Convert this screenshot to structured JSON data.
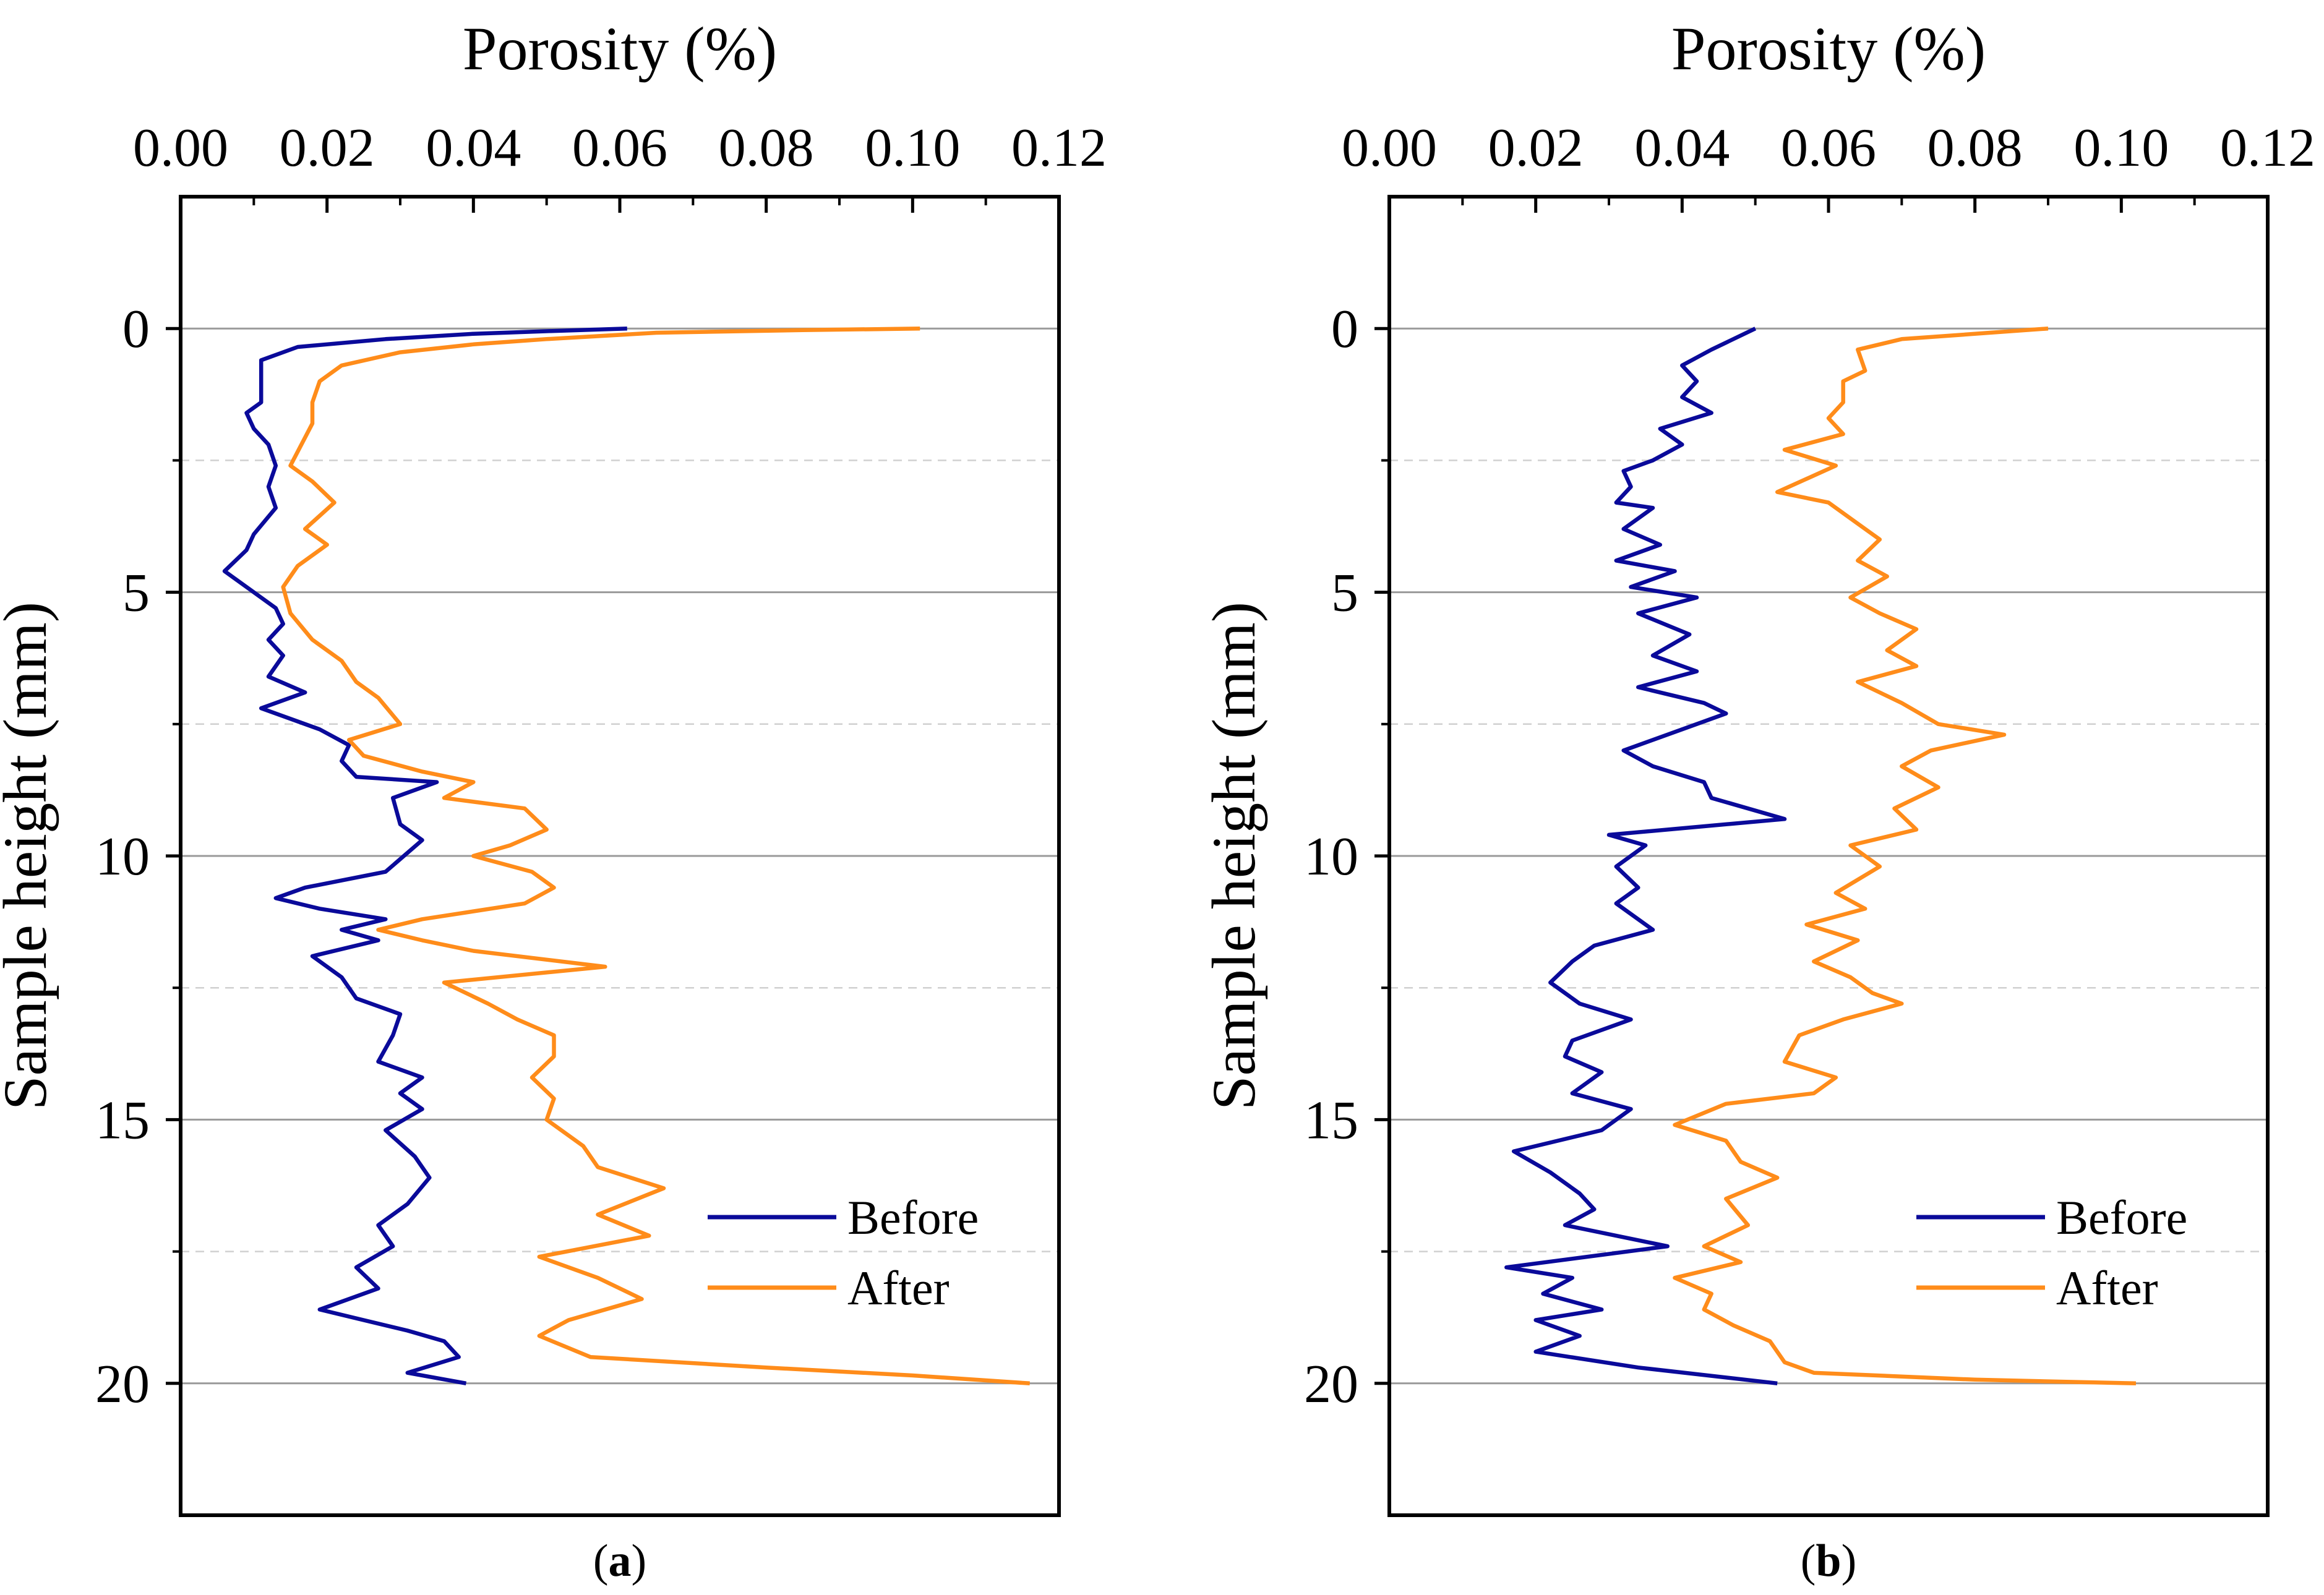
{
  "chart_data": [
    {
      "type": "line",
      "panel_label": "a",
      "xlabel": "Porosity (%)",
      "ylabel": "Sample height (mm)",
      "xlim": [
        0,
        0.12
      ],
      "ylim": [
        -2.5,
        22.5
      ],
      "x_ticks": [
        "0.00",
        "0.02",
        "0.04",
        "0.06",
        "0.08",
        "0.10",
        "0.12"
      ],
      "y_ticks": [
        "0",
        "5",
        "10",
        "15",
        "20"
      ],
      "legend_position": "bottom-right",
      "series": [
        {
          "name": "Before",
          "color": "#0a0a9a",
          "points": [
            [
              0.061,
              0
            ],
            [
              0.05,
              0.05
            ],
            [
              0.04,
              0.1
            ],
            [
              0.028,
              0.2
            ],
            [
              0.016,
              0.35
            ],
            [
              0.011,
              0.6
            ],
            [
              0.011,
              1.0
            ],
            [
              0.011,
              1.4
            ],
            [
              0.009,
              1.6
            ],
            [
              0.01,
              1.9
            ],
            [
              0.012,
              2.2
            ],
            [
              0.013,
              2.6
            ],
            [
              0.012,
              3.0
            ],
            [
              0.013,
              3.4
            ],
            [
              0.01,
              3.9
            ],
            [
              0.009,
              4.2
            ],
            [
              0.006,
              4.6
            ],
            [
              0.009,
              4.9
            ],
            [
              0.013,
              5.3
            ],
            [
              0.014,
              5.6
            ],
            [
              0.012,
              5.9
            ],
            [
              0.014,
              6.2
            ],
            [
              0.012,
              6.6
            ],
            [
              0.017,
              6.9
            ],
            [
              0.011,
              7.2
            ],
            [
              0.019,
              7.6
            ],
            [
              0.023,
              7.9
            ],
            [
              0.022,
              8.2
            ],
            [
              0.024,
              8.5
            ],
            [
              0.035,
              8.6
            ],
            [
              0.029,
              8.9
            ],
            [
              0.03,
              9.4
            ],
            [
              0.033,
              9.7
            ],
            [
              0.028,
              10.3
            ],
            [
              0.017,
              10.6
            ],
            [
              0.013,
              10.8
            ],
            [
              0.019,
              11.0
            ],
            [
              0.028,
              11.2
            ],
            [
              0.022,
              11.4
            ],
            [
              0.027,
              11.6
            ],
            [
              0.018,
              11.9
            ],
            [
              0.022,
              12.3
            ],
            [
              0.024,
              12.7
            ],
            [
              0.03,
              13.0
            ],
            [
              0.029,
              13.4
            ],
            [
              0.027,
              13.9
            ],
            [
              0.033,
              14.2
            ],
            [
              0.03,
              14.5
            ],
            [
              0.033,
              14.8
            ],
            [
              0.028,
              15.2
            ],
            [
              0.032,
              15.7
            ],
            [
              0.034,
              16.1
            ],
            [
              0.031,
              16.6
            ],
            [
              0.027,
              17.0
            ],
            [
              0.029,
              17.4
            ],
            [
              0.024,
              17.8
            ],
            [
              0.027,
              18.2
            ],
            [
              0.019,
              18.6
            ],
            [
              0.025,
              18.8
            ],
            [
              0.031,
              19.0
            ],
            [
              0.036,
              19.2
            ],
            [
              0.038,
              19.5
            ],
            [
              0.031,
              19.8
            ],
            [
              0.039,
              20.0
            ]
          ]
        },
        {
          "name": "After",
          "color": "#ff8c1a",
          "points": [
            [
              0.101,
              0
            ],
            [
              0.085,
              0.03
            ],
            [
              0.065,
              0.08
            ],
            [
              0.05,
              0.2
            ],
            [
              0.04,
              0.3
            ],
            [
              0.03,
              0.45
            ],
            [
              0.022,
              0.7
            ],
            [
              0.019,
              1.0
            ],
            [
              0.018,
              1.4
            ],
            [
              0.018,
              1.8
            ],
            [
              0.015,
              2.6
            ],
            [
              0.018,
              2.9
            ],
            [
              0.021,
              3.3
            ],
            [
              0.017,
              3.8
            ],
            [
              0.02,
              4.1
            ],
            [
              0.016,
              4.5
            ],
            [
              0.014,
              4.9
            ],
            [
              0.015,
              5.4
            ],
            [
              0.018,
              5.9
            ],
            [
              0.022,
              6.3
            ],
            [
              0.024,
              6.7
            ],
            [
              0.027,
              7.0
            ],
            [
              0.03,
              7.5
            ],
            [
              0.023,
              7.8
            ],
            [
              0.025,
              8.1
            ],
            [
              0.033,
              8.4
            ],
            [
              0.04,
              8.6
            ],
            [
              0.036,
              8.9
            ],
            [
              0.047,
              9.1
            ],
            [
              0.05,
              9.5
            ],
            [
              0.045,
              9.8
            ],
            [
              0.04,
              10.0
            ],
            [
              0.048,
              10.3
            ],
            [
              0.051,
              10.6
            ],
            [
              0.047,
              10.9
            ],
            [
              0.033,
              11.2
            ],
            [
              0.027,
              11.4
            ],
            [
              0.033,
              11.6
            ],
            [
              0.04,
              11.8
            ],
            [
              0.058,
              12.1
            ],
            [
              0.036,
              12.4
            ],
            [
              0.042,
              12.8
            ],
            [
              0.046,
              13.1
            ],
            [
              0.051,
              13.4
            ],
            [
              0.051,
              13.8
            ],
            [
              0.048,
              14.2
            ],
            [
              0.051,
              14.6
            ],
            [
              0.05,
              15.0
            ],
            [
              0.055,
              15.5
            ],
            [
              0.057,
              15.9
            ],
            [
              0.066,
              16.3
            ],
            [
              0.057,
              16.8
            ],
            [
              0.064,
              17.2
            ],
            [
              0.049,
              17.6
            ],
            [
              0.057,
              18.0
            ],
            [
              0.063,
              18.4
            ],
            [
              0.053,
              18.8
            ],
            [
              0.049,
              19.1
            ],
            [
              0.056,
              19.5
            ],
            [
              0.08,
              19.7
            ],
            [
              0.1,
              19.85
            ],
            [
              0.116,
              20.0
            ]
          ]
        }
      ]
    },
    {
      "type": "line",
      "panel_label": "b",
      "xlabel": "Porosity (%)",
      "ylabel": "Sample height (mm)",
      "xlim": [
        0,
        0.12
      ],
      "ylim": [
        -2.5,
        22.5
      ],
      "x_ticks": [
        "0.00",
        "0.02",
        "0.04",
        "0.06",
        "0.08",
        "0.10",
        "0.12"
      ],
      "y_ticks": [
        "0",
        "5",
        "10",
        "15",
        "20"
      ],
      "legend_position": "bottom-right",
      "series": [
        {
          "name": "Before",
          "color": "#0a0a9a",
          "points": [
            [
              0.05,
              0
            ],
            [
              0.044,
              0.4
            ],
            [
              0.04,
              0.7
            ],
            [
              0.042,
              1.0
            ],
            [
              0.04,
              1.3
            ],
            [
              0.044,
              1.6
            ],
            [
              0.037,
              1.9
            ],
            [
              0.04,
              2.2
            ],
            [
              0.036,
              2.5
            ],
            [
              0.032,
              2.7
            ],
            [
              0.033,
              3.0
            ],
            [
              0.031,
              3.3
            ],
            [
              0.036,
              3.4
            ],
            [
              0.032,
              3.8
            ],
            [
              0.037,
              4.1
            ],
            [
              0.031,
              4.4
            ],
            [
              0.039,
              4.6
            ],
            [
              0.033,
              4.9
            ],
            [
              0.042,
              5.1
            ],
            [
              0.034,
              5.4
            ],
            [
              0.041,
              5.8
            ],
            [
              0.036,
              6.2
            ],
            [
              0.042,
              6.5
            ],
            [
              0.034,
              6.8
            ],
            [
              0.043,
              7.1
            ],
            [
              0.046,
              7.3
            ],
            [
              0.04,
              7.6
            ],
            [
              0.032,
              8.0
            ],
            [
              0.036,
              8.3
            ],
            [
              0.043,
              8.6
            ],
            [
              0.044,
              8.9
            ],
            [
              0.054,
              9.3
            ],
            [
              0.03,
              9.6
            ],
            [
              0.035,
              9.8
            ],
            [
              0.031,
              10.2
            ],
            [
              0.034,
              10.6
            ],
            [
              0.031,
              10.9
            ],
            [
              0.036,
              11.4
            ],
            [
              0.028,
              11.7
            ],
            [
              0.025,
              12.0
            ],
            [
              0.022,
              12.4
            ],
            [
              0.026,
              12.8
            ],
            [
              0.033,
              13.1
            ],
            [
              0.025,
              13.5
            ],
            [
              0.024,
              13.8
            ],
            [
              0.029,
              14.1
            ],
            [
              0.025,
              14.5
            ],
            [
              0.033,
              14.8
            ],
            [
              0.029,
              15.2
            ],
            [
              0.017,
              15.6
            ],
            [
              0.022,
              16.0
            ],
            [
              0.026,
              16.4
            ],
            [
              0.028,
              16.7
            ],
            [
              0.024,
              17.0
            ],
            [
              0.038,
              17.4
            ],
            [
              0.016,
              17.8
            ],
            [
              0.025,
              18.0
            ],
            [
              0.021,
              18.3
            ],
            [
              0.029,
              18.6
            ],
            [
              0.02,
              18.8
            ],
            [
              0.026,
              19.1
            ],
            [
              0.02,
              19.4
            ],
            [
              0.034,
              19.7
            ],
            [
              0.053,
              20.0
            ]
          ]
        },
        {
          "name": "After",
          "color": "#ff8c1a",
          "points": [
            [
              0.09,
              0
            ],
            [
              0.07,
              0.2
            ],
            [
              0.064,
              0.4
            ],
            [
              0.065,
              0.8
            ],
            [
              0.062,
              1.0
            ],
            [
              0.062,
              1.4
            ],
            [
              0.06,
              1.7
            ],
            [
              0.062,
              2.0
            ],
            [
              0.054,
              2.3
            ],
            [
              0.061,
              2.6
            ],
            [
              0.053,
              3.1
            ],
            [
              0.06,
              3.3
            ],
            [
              0.064,
              3.7
            ],
            [
              0.067,
              4.0
            ],
            [
              0.064,
              4.4
            ],
            [
              0.068,
              4.7
            ],
            [
              0.063,
              5.1
            ],
            [
              0.067,
              5.4
            ],
            [
              0.072,
              5.7
            ],
            [
              0.068,
              6.1
            ],
            [
              0.072,
              6.4
            ],
            [
              0.064,
              6.7
            ],
            [
              0.07,
              7.1
            ],
            [
              0.075,
              7.5
            ],
            [
              0.084,
              7.7
            ],
            [
              0.074,
              8.0
            ],
            [
              0.07,
              8.3
            ],
            [
              0.075,
              8.7
            ],
            [
              0.069,
              9.1
            ],
            [
              0.072,
              9.5
            ],
            [
              0.063,
              9.8
            ],
            [
              0.067,
              10.2
            ],
            [
              0.061,
              10.7
            ],
            [
              0.065,
              11.0
            ],
            [
              0.057,
              11.3
            ],
            [
              0.064,
              11.6
            ],
            [
              0.058,
              12.0
            ],
            [
              0.063,
              12.3
            ],
            [
              0.066,
              12.6
            ],
            [
              0.07,
              12.8
            ],
            [
              0.062,
              13.1
            ],
            [
              0.056,
              13.4
            ],
            [
              0.054,
              13.9
            ],
            [
              0.061,
              14.2
            ],
            [
              0.058,
              14.5
            ],
            [
              0.046,
              14.7
            ],
            [
              0.039,
              15.1
            ],
            [
              0.046,
              15.4
            ],
            [
              0.048,
              15.8
            ],
            [
              0.053,
              16.1
            ],
            [
              0.046,
              16.5
            ],
            [
              0.049,
              17.0
            ],
            [
              0.043,
              17.4
            ],
            [
              0.048,
              17.7
            ],
            [
              0.039,
              18.0
            ],
            [
              0.044,
              18.3
            ],
            [
              0.043,
              18.6
            ],
            [
              0.047,
              18.9
            ],
            [
              0.052,
              19.2
            ],
            [
              0.054,
              19.6
            ],
            [
              0.058,
              19.8
            ],
            [
              0.08,
              19.93
            ],
            [
              0.102,
              20.0
            ]
          ]
        }
      ]
    }
  ]
}
